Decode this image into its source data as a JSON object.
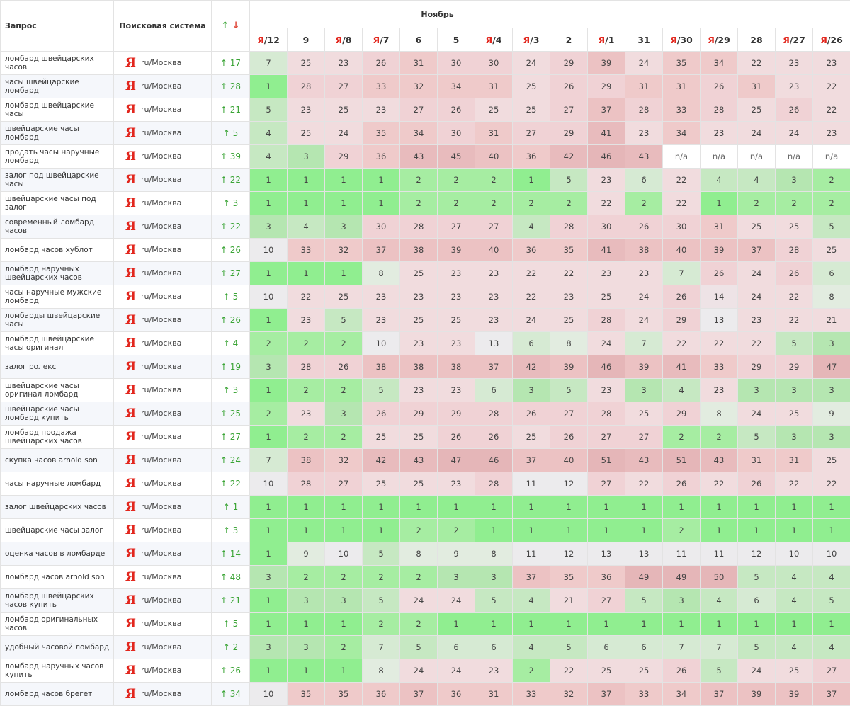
{
  "header": {
    "query_label": "Запрос",
    "engine_label": "Поисковая система",
    "arrow_up": "↑",
    "arrow_down": "↓",
    "month_label": "Ноябрь"
  },
  "columns": [
    {
      "prefix": "Я",
      "label": "/12"
    },
    {
      "prefix": "",
      "label": "9"
    },
    {
      "prefix": "Я",
      "label": "/8"
    },
    {
      "prefix": "Я",
      "label": "/7"
    },
    {
      "prefix": "",
      "label": "6"
    },
    {
      "prefix": "",
      "label": "5"
    },
    {
      "prefix": "Я",
      "label": "/4"
    },
    {
      "prefix": "Я",
      "label": "/3"
    },
    {
      "prefix": "",
      "label": "2"
    },
    {
      "prefix": "Я",
      "label": "/1"
    },
    {
      "prefix": "",
      "label": "31"
    },
    {
      "prefix": "Я",
      "label": "/30"
    },
    {
      "prefix": "Я",
      "label": "/29"
    },
    {
      "prefix": "",
      "label": "28"
    },
    {
      "prefix": "Я",
      "label": "/27"
    },
    {
      "prefix": "Я",
      "label": "/26"
    }
  ],
  "engine": {
    "logo": "Я",
    "region": "ru/Москва"
  },
  "rows": [
    {
      "query": "ломбард швейцарских часов",
      "delta": "↑ 17",
      "pos": [
        "7",
        "25",
        "23",
        "26",
        "31",
        "30",
        "30",
        "24",
        "29",
        "39",
        "24",
        "35",
        "34",
        "22",
        "23",
        "23"
      ]
    },
    {
      "query": "часы швейцарские ломбард",
      "delta": "↑ 28",
      "pos": [
        "1",
        "28",
        "27",
        "33",
        "32",
        "34",
        "31",
        "25",
        "26",
        "29",
        "31",
        "31",
        "26",
        "31",
        "23",
        "22"
      ]
    },
    {
      "query": "ломбард швейцарские часы",
      "delta": "↑ 21",
      "pos": [
        "5",
        "23",
        "25",
        "23",
        "27",
        "26",
        "25",
        "25",
        "27",
        "37",
        "28",
        "33",
        "28",
        "25",
        "26",
        "22"
      ]
    },
    {
      "query": "швейцарские часы ломбард",
      "delta": "↑ 5",
      "pos": [
        "4",
        "25",
        "24",
        "35",
        "34",
        "30",
        "31",
        "27",
        "29",
        "41",
        "23",
        "34",
        "23",
        "24",
        "24",
        "23"
      ]
    },
    {
      "query": "продать часы наручные ломбард",
      "delta": "↑ 39",
      "pos": [
        "4",
        "3",
        "29",
        "36",
        "43",
        "45",
        "40",
        "36",
        "42",
        "46",
        "43",
        "n/a",
        "n/a",
        "n/a",
        "n/a",
        "n/a"
      ]
    },
    {
      "query": "залог под швейцарские часы",
      "delta": "↑ 22",
      "pos": [
        "1",
        "1",
        "1",
        "1",
        "2",
        "2",
        "2",
        "1",
        "5",
        "23",
        "6",
        "22",
        "4",
        "4",
        "3",
        "2"
      ]
    },
    {
      "query": "швейцарские часы под залог",
      "delta": "↑ 3",
      "pos": [
        "1",
        "1",
        "1",
        "1",
        "2",
        "2",
        "2",
        "2",
        "2",
        "22",
        "2",
        "22",
        "1",
        "2",
        "2",
        "2"
      ]
    },
    {
      "query": "современный ломбард часов",
      "delta": "↑ 22",
      "pos": [
        "3",
        "4",
        "3",
        "30",
        "28",
        "27",
        "27",
        "4",
        "28",
        "30",
        "26",
        "30",
        "31",
        "25",
        "25",
        "5"
      ]
    },
    {
      "query": "ломбард часов хублот",
      "delta": "↑ 26",
      "pos": [
        "10",
        "33",
        "32",
        "37",
        "38",
        "39",
        "40",
        "36",
        "35",
        "41",
        "38",
        "40",
        "39",
        "37",
        "28",
        "25"
      ]
    },
    {
      "query": "ломбард наручных швейцарских часов",
      "delta": "↑ 27",
      "pos": [
        "1",
        "1",
        "1",
        "8",
        "25",
        "23",
        "23",
        "22",
        "22",
        "23",
        "23",
        "7",
        "26",
        "24",
        "26",
        "6"
      ]
    },
    {
      "query": "часы наручные мужские ломбард",
      "delta": "↑ 5",
      "pos": [
        "10",
        "22",
        "25",
        "23",
        "23",
        "23",
        "23",
        "22",
        "23",
        "25",
        "24",
        "26",
        "14",
        "24",
        "22",
        "8"
      ]
    },
    {
      "query": "ломбарды швейцарские часы",
      "delta": "↑ 26",
      "pos": [
        "1",
        "23",
        "5",
        "23",
        "25",
        "25",
        "23",
        "24",
        "25",
        "28",
        "24",
        "29",
        "13",
        "23",
        "22",
        "21"
      ]
    },
    {
      "query": "ломбард швейцарские часы оригинал",
      "delta": "↑ 4",
      "pos": [
        "2",
        "2",
        "2",
        "10",
        "23",
        "23",
        "13",
        "6",
        "8",
        "24",
        "7",
        "22",
        "22",
        "22",
        "5",
        "3"
      ]
    },
    {
      "query": "залог ролекс",
      "delta": "↑ 19",
      "pos": [
        "3",
        "28",
        "26",
        "38",
        "38",
        "38",
        "37",
        "42",
        "39",
        "46",
        "39",
        "41",
        "33",
        "29",
        "29",
        "47"
      ]
    },
    {
      "query": "швейцарские часы оригинал ломбард",
      "delta": "↑ 3",
      "pos": [
        "1",
        "2",
        "2",
        "5",
        "23",
        "23",
        "6",
        "3",
        "5",
        "23",
        "3",
        "4",
        "23",
        "3",
        "3",
        "3"
      ]
    },
    {
      "query": "швейцарские часы ломбард купить",
      "delta": "↑ 25",
      "pos": [
        "2",
        "23",
        "3",
        "26",
        "29",
        "29",
        "28",
        "26",
        "27",
        "28",
        "25",
        "29",
        "8",
        "24",
        "25",
        "9"
      ]
    },
    {
      "query": "ломбард продажа швейцарских часов",
      "delta": "↑ 27",
      "pos": [
        "1",
        "2",
        "2",
        "25",
        "25",
        "26",
        "26",
        "25",
        "26",
        "27",
        "27",
        "2",
        "2",
        "5",
        "3",
        "3"
      ]
    },
    {
      "query": "скупка часов arnold son",
      "delta": "↑ 24",
      "pos": [
        "7",
        "38",
        "32",
        "42",
        "43",
        "47",
        "46",
        "37",
        "40",
        "51",
        "43",
        "51",
        "43",
        "31",
        "31",
        "25"
      ]
    },
    {
      "query": "часы наручные ломбард",
      "delta": "↑ 22",
      "pos": [
        "10",
        "28",
        "27",
        "25",
        "25",
        "23",
        "28",
        "11",
        "12",
        "27",
        "22",
        "26",
        "22",
        "26",
        "22",
        "22"
      ]
    },
    {
      "query": "залог швейцарских часов",
      "delta": "↑ 1",
      "pos": [
        "1",
        "1",
        "1",
        "1",
        "1",
        "1",
        "1",
        "1",
        "1",
        "1",
        "1",
        "1",
        "1",
        "1",
        "1",
        "1"
      ]
    },
    {
      "query": "швейцарские часы залог",
      "delta": "↑ 3",
      "pos": [
        "1",
        "1",
        "1",
        "1",
        "2",
        "2",
        "1",
        "1",
        "1",
        "1",
        "1",
        "2",
        "1",
        "1",
        "1",
        "1"
      ]
    },
    {
      "query": "оценка часов в ломбарде",
      "delta": "↑ 14",
      "pos": [
        "1",
        "9",
        "10",
        "5",
        "8",
        "9",
        "8",
        "11",
        "12",
        "13",
        "13",
        "11",
        "11",
        "12",
        "10",
        "10"
      ]
    },
    {
      "query": "ломбард часов arnold son",
      "delta": "↑ 48",
      "pos": [
        "3",
        "2",
        "2",
        "2",
        "2",
        "3",
        "3",
        "37",
        "35",
        "36",
        "49",
        "49",
        "50",
        "5",
        "4",
        "4"
      ]
    },
    {
      "query": "ломбард швейцарских часов купить",
      "delta": "↑ 21",
      "pos": [
        "1",
        "3",
        "3",
        "5",
        "24",
        "24",
        "5",
        "4",
        "21",
        "27",
        "5",
        "3",
        "4",
        "6",
        "4",
        "5"
      ]
    },
    {
      "query": "ломбард оригинальных часов",
      "delta": "↑ 5",
      "pos": [
        "1",
        "1",
        "1",
        "2",
        "2",
        "1",
        "1",
        "1",
        "1",
        "1",
        "1",
        "1",
        "1",
        "1",
        "1",
        "1"
      ]
    },
    {
      "query": "удобный часовой ломбард",
      "delta": "↑ 2",
      "pos": [
        "3",
        "3",
        "2",
        "7",
        "5",
        "6",
        "6",
        "4",
        "5",
        "6",
        "6",
        "7",
        "7",
        "5",
        "4",
        "4"
      ]
    },
    {
      "query": "ломбард наручных часов купить",
      "delta": "↑ 26",
      "pos": [
        "1",
        "1",
        "1",
        "8",
        "24",
        "24",
        "23",
        "2",
        "22",
        "25",
        "25",
        "26",
        "5",
        "24",
        "25",
        "27"
      ]
    },
    {
      "query": "ломбард часов брегет",
      "delta": "↑ 34",
      "pos": [
        "10",
        "35",
        "35",
        "36",
        "37",
        "36",
        "31",
        "33",
        "32",
        "37",
        "33",
        "34",
        "37",
        "39",
        "39",
        "37"
      ]
    }
  ]
}
